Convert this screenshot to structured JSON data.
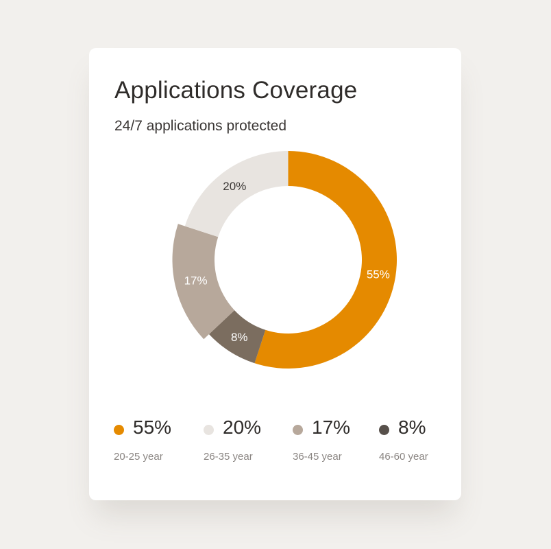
{
  "card": {
    "title": "Applications Coverage",
    "subtitle": "24/7 applications protected"
  },
  "chart_data": {
    "type": "pie",
    "variant": "donut",
    "title": "Applications Coverage",
    "subtitle": "24/7 applications protected",
    "categories": [
      "20-25 year",
      "26-35 year",
      "36-45 year",
      "46-60 year"
    ],
    "values": [
      55,
      20,
      17,
      8
    ],
    "labels": [
      "55%",
      "20%",
      "17%",
      "8%"
    ],
    "colors": [
      "#e58a00",
      "#e8e4e0",
      "#b7a89b",
      "#7b6d5f"
    ],
    "highlighted": "36-45 year",
    "legend_position": "bottom"
  },
  "legend": [
    {
      "value": "55%",
      "label": "20-25 year",
      "color": "#e58a00"
    },
    {
      "value": "20%",
      "label": "26-35 year",
      "color": "#e8e4e0"
    },
    {
      "value": "17%",
      "label": "36-45 year",
      "color": "#b7a89b"
    },
    {
      "value": "8%",
      "label": "46-60 year",
      "color": "#57504b"
    }
  ]
}
